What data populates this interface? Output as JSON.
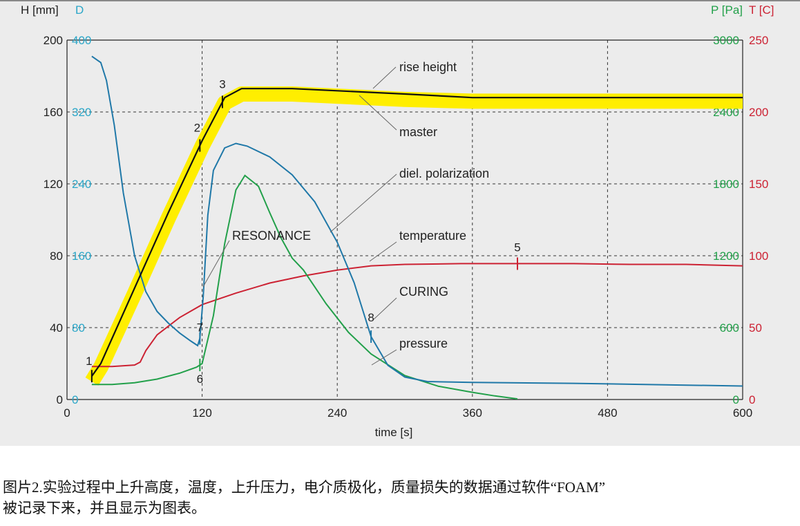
{
  "caption": {
    "line1": "图片2.实验过程中上升高度，温度，上升压力，电介质极化，质量损失的数据通过软件“FOAM”",
    "line2": "被记录下来，并且显示为图表。"
  },
  "colors": {
    "height": "#111111",
    "height_band": "#ffee00",
    "dielectric": "#1f78a8",
    "pressure": "#22a04a",
    "temperature": "#cc2233",
    "axis_D": "#2aa6c8",
    "axis_P": "#22a04a",
    "axis_T": "#cc2233"
  },
  "chart_data": {
    "type": "line",
    "xlabel": "time  [s]",
    "xlim": [
      0,
      600
    ],
    "x_ticks": [
      "0",
      "120",
      "240",
      "360",
      "480",
      "600"
    ],
    "grid": true,
    "axes": {
      "H": {
        "label": "H [mm]",
        "range": [
          0,
          200
        ],
        "ticks": [
          "0",
          "40",
          "80",
          "120",
          "160",
          "200"
        ]
      },
      "D": {
        "label": "D",
        "range": [
          0,
          400
        ],
        "ticks": [
          "0",
          "80",
          "160",
          "240",
          "320",
          "400"
        ]
      },
      "P": {
        "label": "P [Pa]",
        "range": [
          0,
          3000
        ],
        "ticks": [
          "0",
          "600",
          "1200",
          "1800",
          "2400",
          "3000"
        ]
      },
      "T": {
        "label": "T [C]",
        "range": [
          0,
          250
        ],
        "ticks": [
          "0",
          "50",
          "100",
          "150",
          "200",
          "250"
        ]
      }
    },
    "series": [
      {
        "key": "master",
        "axis": "H",
        "x": [
          22,
          30,
          60,
          90,
          120,
          140,
          155,
          200,
          300,
          360,
          450,
          550,
          600
        ],
        "y": [
          13,
          20,
          62,
          104,
          144,
          168,
          173,
          173,
          170,
          168,
          168,
          168,
          168
        ]
      },
      {
        "key": "rise",
        "axis": "H",
        "x": [
          22,
          30,
          60,
          90,
          120,
          140,
          155,
          200,
          300,
          360,
          450,
          550,
          600
        ],
        "y": [
          10,
          18,
          59,
          101,
          141,
          165,
          170,
          170,
          167,
          166,
          166,
          166,
          166
        ]
      },
      {
        "key": "dielectric",
        "axis": "D",
        "x": [
          22,
          30,
          35,
          42,
          50,
          60,
          70,
          80,
          90,
          100,
          110,
          116,
          118,
          121,
          125,
          130,
          140,
          150,
          160,
          180,
          200,
          220,
          240,
          255,
          270,
          285,
          300,
          320,
          360,
          450,
          550,
          600
        ],
        "y": [
          382,
          375,
          355,
          305,
          230,
          160,
          120,
          98,
          85,
          74,
          65,
          60,
          68,
          115,
          205,
          255,
          280,
          285,
          282,
          270,
          250,
          220,
          175,
          130,
          70,
          38,
          25,
          20,
          19,
          18,
          16,
          15
        ]
      },
      {
        "key": "pressure",
        "axis": "P",
        "x": [
          22,
          40,
          60,
          80,
          100,
          115,
          120,
          130,
          140,
          150,
          158,
          170,
          180,
          190,
          200,
          210,
          230,
          250,
          270,
          300,
          330,
          360,
          380,
          400
        ],
        "y": [
          125,
          125,
          140,
          170,
          220,
          270,
          300,
          700,
          1300,
          1750,
          1870,
          1780,
          1560,
          1350,
          1180,
          1080,
          800,
          560,
          380,
          200,
          110,
          60,
          30,
          5
        ]
      },
      {
        "key": "temperature",
        "axis": "T",
        "x": [
          22,
          40,
          60,
          65,
          70,
          80,
          100,
          120,
          150,
          180,
          210,
          240,
          270,
          300,
          350,
          400,
          450,
          500,
          550,
          600
        ],
        "y": [
          23,
          23,
          24,
          26,
          34,
          45,
          57,
          66,
          74,
          81,
          86,
          90,
          93,
          94,
          94.5,
          94.5,
          94.5,
          94,
          94,
          93
        ]
      }
    ],
    "markers": [
      {
        "label": "1",
        "x": 22,
        "series": "master"
      },
      {
        "label": "2",
        "x": 118,
        "series": "master"
      },
      {
        "label": "3",
        "x": 138,
        "series": "master"
      },
      {
        "label": "5",
        "x": 400,
        "series": "temperature"
      },
      {
        "label": "6",
        "x": 118,
        "series": "pressure"
      },
      {
        "label": "7",
        "x": 118,
        "series": "dielectric"
      },
      {
        "label": "8",
        "x": 270,
        "series": "dielectric"
      }
    ],
    "annotations": {
      "rise": "rise height",
      "master": "master",
      "dielectric": "diel. polarization",
      "resonance": "RESONANCE",
      "temperature": "temperature",
      "curing": "CURING",
      "pressure": "pressure"
    }
  }
}
